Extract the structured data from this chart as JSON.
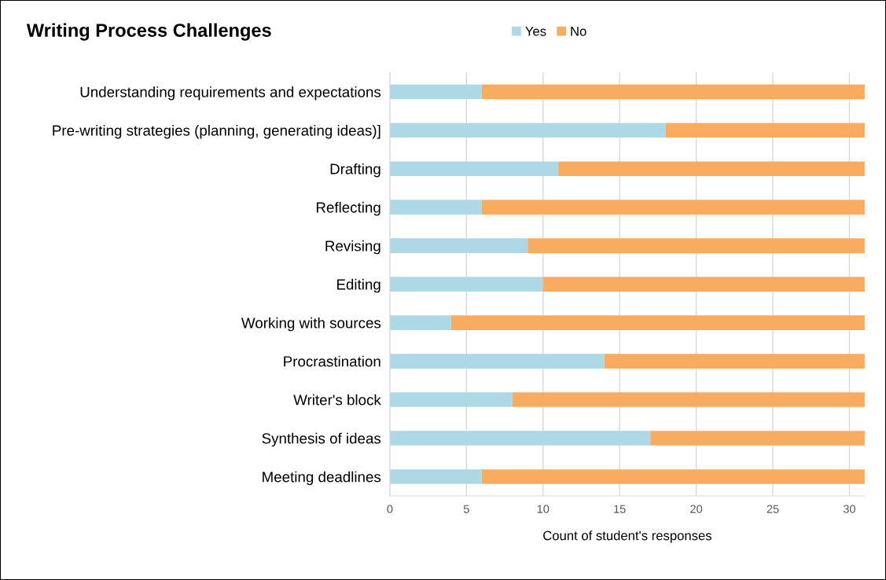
{
  "chart_data": {
    "type": "bar",
    "orientation": "horizontal",
    "stacked": true,
    "title": "Writing Process Challenges",
    "xlabel": "Count of student's responses",
    "categories": [
      "Understanding requirements and expectations",
      "Pre-writing strategies (planning, generating ideas)]",
      "Drafting",
      "Reflecting",
      "Revising",
      "Editing",
      "Working with sources",
      "Procrastination",
      "Writer's block",
      "Synthesis of ideas",
      "Meeting deadlines"
    ],
    "series": [
      {
        "name": "Yes",
        "color": "#add8e6",
        "values": [
          6,
          18,
          11,
          6,
          9,
          10,
          4,
          14,
          8,
          17,
          6
        ]
      },
      {
        "name": "No",
        "color": "#f9ac60",
        "values": [
          25,
          13,
          20,
          25,
          22,
          21,
          27,
          17,
          23,
          14,
          25
        ]
      }
    ],
    "xlim": [
      0,
      31
    ],
    "xticks": [
      0,
      5,
      10,
      15,
      20,
      25,
      30
    ],
    "grid": "x",
    "legend": "top"
  }
}
